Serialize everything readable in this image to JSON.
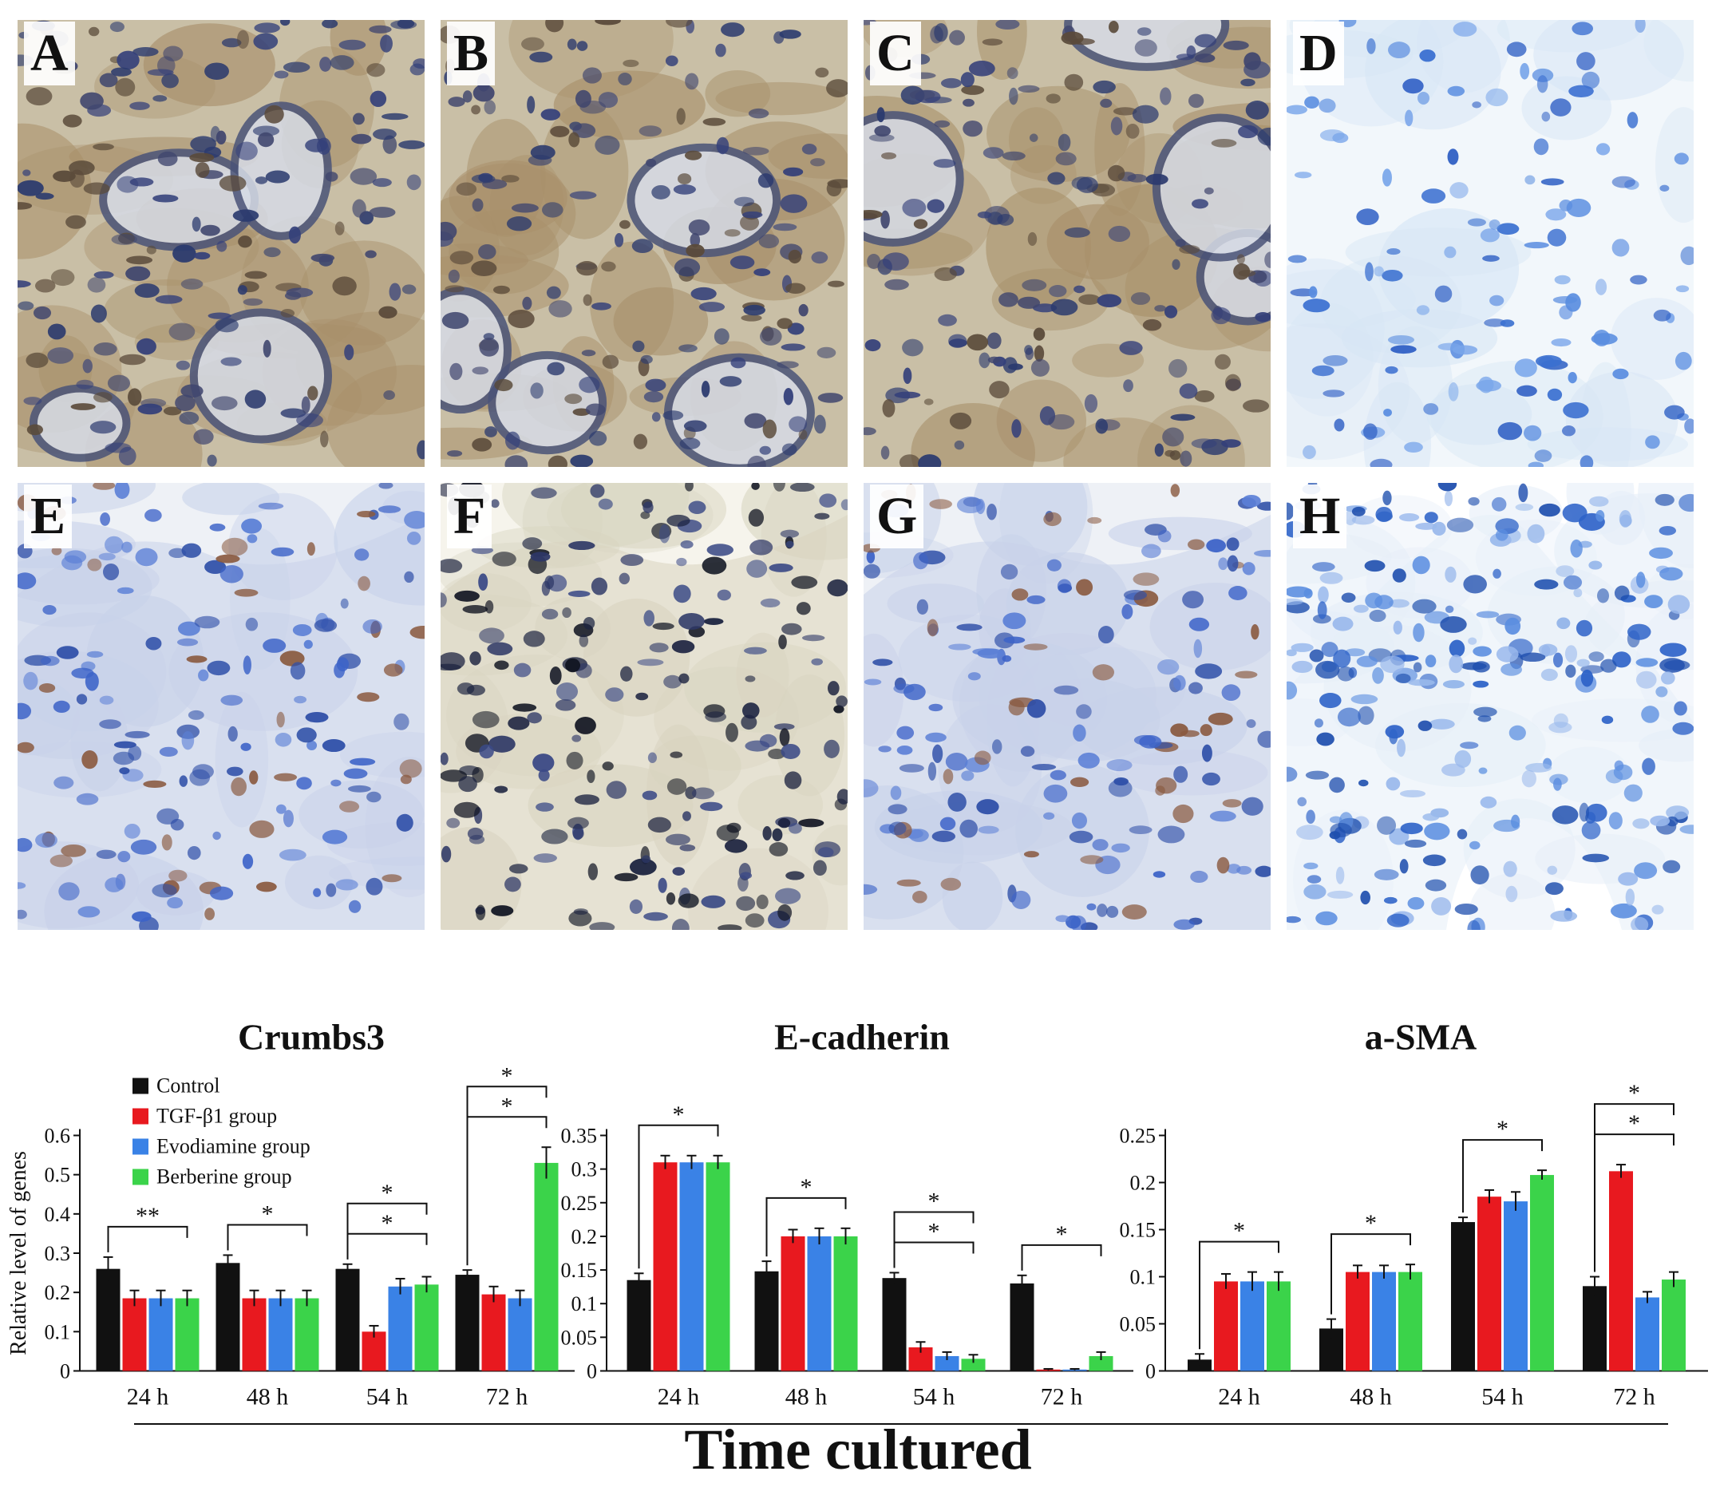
{
  "panels": [
    {
      "letter": "A",
      "tone": "brown"
    },
    {
      "letter": "B",
      "tone": "brown"
    },
    {
      "letter": "C",
      "tone": "brown"
    },
    {
      "letter": "D",
      "tone": "blue"
    },
    {
      "letter": "E",
      "tone": "mixed"
    },
    {
      "letter": "F",
      "tone": "dark"
    },
    {
      "letter": "G",
      "tone": "mixed"
    },
    {
      "letter": "H",
      "tone": "pale"
    }
  ],
  "shared_xlabel": "Time cultured",
  "colors": {
    "Control": "#111111",
    "TGF-β1 group": "#e8191f",
    "Evodiamine group": "#3a82e6",
    "Berberine group": "#3bd34a"
  },
  "chart_data": [
    {
      "type": "bar",
      "title": "Crumbs3",
      "ylabel": "Relative level of genes",
      "xlabel": "",
      "categories": [
        "24 h",
        "48 h",
        "54 h",
        "72 h"
      ],
      "ylim": [
        0,
        0.6
      ],
      "yticks": [
        "0",
        "0.1",
        "0.2",
        "0.3",
        "0.4",
        "0.5",
        "0.6"
      ],
      "legend": "top-left",
      "series": [
        {
          "name": "Control",
          "values": [
            0.26,
            0.275,
            0.26,
            0.245
          ],
          "errors": [
            0.03,
            0.02,
            0.012,
            0.012
          ]
        },
        {
          "name": "TGF-β1 group",
          "values": [
            0.185,
            0.185,
            0.1,
            0.195
          ],
          "errors": [
            0.02,
            0.02,
            0.015,
            0.02
          ]
        },
        {
          "name": "Evodiamine group",
          "values": [
            0.185,
            0.185,
            0.215,
            0.185
          ],
          "errors": [
            0.02,
            0.02,
            0.02,
            0.02
          ]
        },
        {
          "name": "Berberine group",
          "values": [
            0.185,
            0.185,
            0.22,
            0.53
          ],
          "errors": [
            0.02,
            0.02,
            0.02,
            0.04
          ]
        }
      ],
      "annotations": [
        {
          "cat": 0,
          "label": "**"
        },
        {
          "cat": 1,
          "label": "*"
        },
        {
          "cat": 2,
          "label": "*"
        },
        {
          "cat": 2,
          "label": "*"
        },
        {
          "cat": 3,
          "label": "*"
        },
        {
          "cat": 3,
          "label": "*"
        }
      ]
    },
    {
      "type": "bar",
      "title": "E-cadherin",
      "ylabel": "",
      "xlabel": "",
      "categories": [
        "24 h",
        "48 h",
        "54 h",
        "72 h"
      ],
      "ylim": [
        0,
        0.35
      ],
      "yticks": [
        "0",
        "0.05",
        "0.1",
        "0.15",
        "0.2",
        "0.25",
        "0.3",
        "0.35"
      ],
      "series": [
        {
          "name": "Control",
          "values": [
            0.135,
            0.148,
            0.138,
            0.13
          ],
          "errors": [
            0.01,
            0.015,
            0.008,
            0.012
          ]
        },
        {
          "name": "TGF-β1 group",
          "values": [
            0.31,
            0.2,
            0.035,
            0.002
          ],
          "errors": [
            0.01,
            0.01,
            0.008,
            0.001
          ]
        },
        {
          "name": "Evodiamine group",
          "values": [
            0.31,
            0.2,
            0.022,
            0.002
          ],
          "errors": [
            0.01,
            0.012,
            0.006,
            0.001
          ]
        },
        {
          "name": "Berberine group",
          "values": [
            0.31,
            0.2,
            0.018,
            0.022
          ],
          "errors": [
            0.01,
            0.012,
            0.006,
            0.006
          ]
        }
      ],
      "annotations": [
        {
          "cat": 0,
          "label": "*"
        },
        {
          "cat": 1,
          "label": "*"
        },
        {
          "cat": 2,
          "label": "*"
        },
        {
          "cat": 2,
          "label": "*"
        },
        {
          "cat": 3,
          "label": "*"
        }
      ]
    },
    {
      "type": "bar",
      "title": "a-SMA",
      "ylabel": "",
      "xlabel": "",
      "categories": [
        "24 h",
        "48 h",
        "54 h",
        "72 h"
      ],
      "ylim": [
        0,
        0.25
      ],
      "yticks": [
        "0",
        "0.05",
        "0.1",
        "0.15",
        "0.2",
        "0.25"
      ],
      "series": [
        {
          "name": "Control",
          "values": [
            0.012,
            0.045,
            0.158,
            0.09
          ],
          "errors": [
            0.006,
            0.01,
            0.005,
            0.01
          ]
        },
        {
          "name": "TGF-β1 group",
          "values": [
            0.095,
            0.105,
            0.185,
            0.212
          ],
          "errors": [
            0.008,
            0.007,
            0.007,
            0.007
          ]
        },
        {
          "name": "Evodiamine group",
          "values": [
            0.095,
            0.105,
            0.18,
            0.078
          ],
          "errors": [
            0.01,
            0.007,
            0.01,
            0.006
          ]
        },
        {
          "name": "Berberine group",
          "values": [
            0.095,
            0.105,
            0.208,
            0.097
          ],
          "errors": [
            0.01,
            0.008,
            0.005,
            0.008
          ]
        }
      ],
      "annotations": [
        {
          "cat": 0,
          "label": "*"
        },
        {
          "cat": 1,
          "label": "*"
        },
        {
          "cat": 2,
          "label": "*"
        },
        {
          "cat": 3,
          "label": "*"
        },
        {
          "cat": 3,
          "label": "*"
        }
      ]
    }
  ]
}
